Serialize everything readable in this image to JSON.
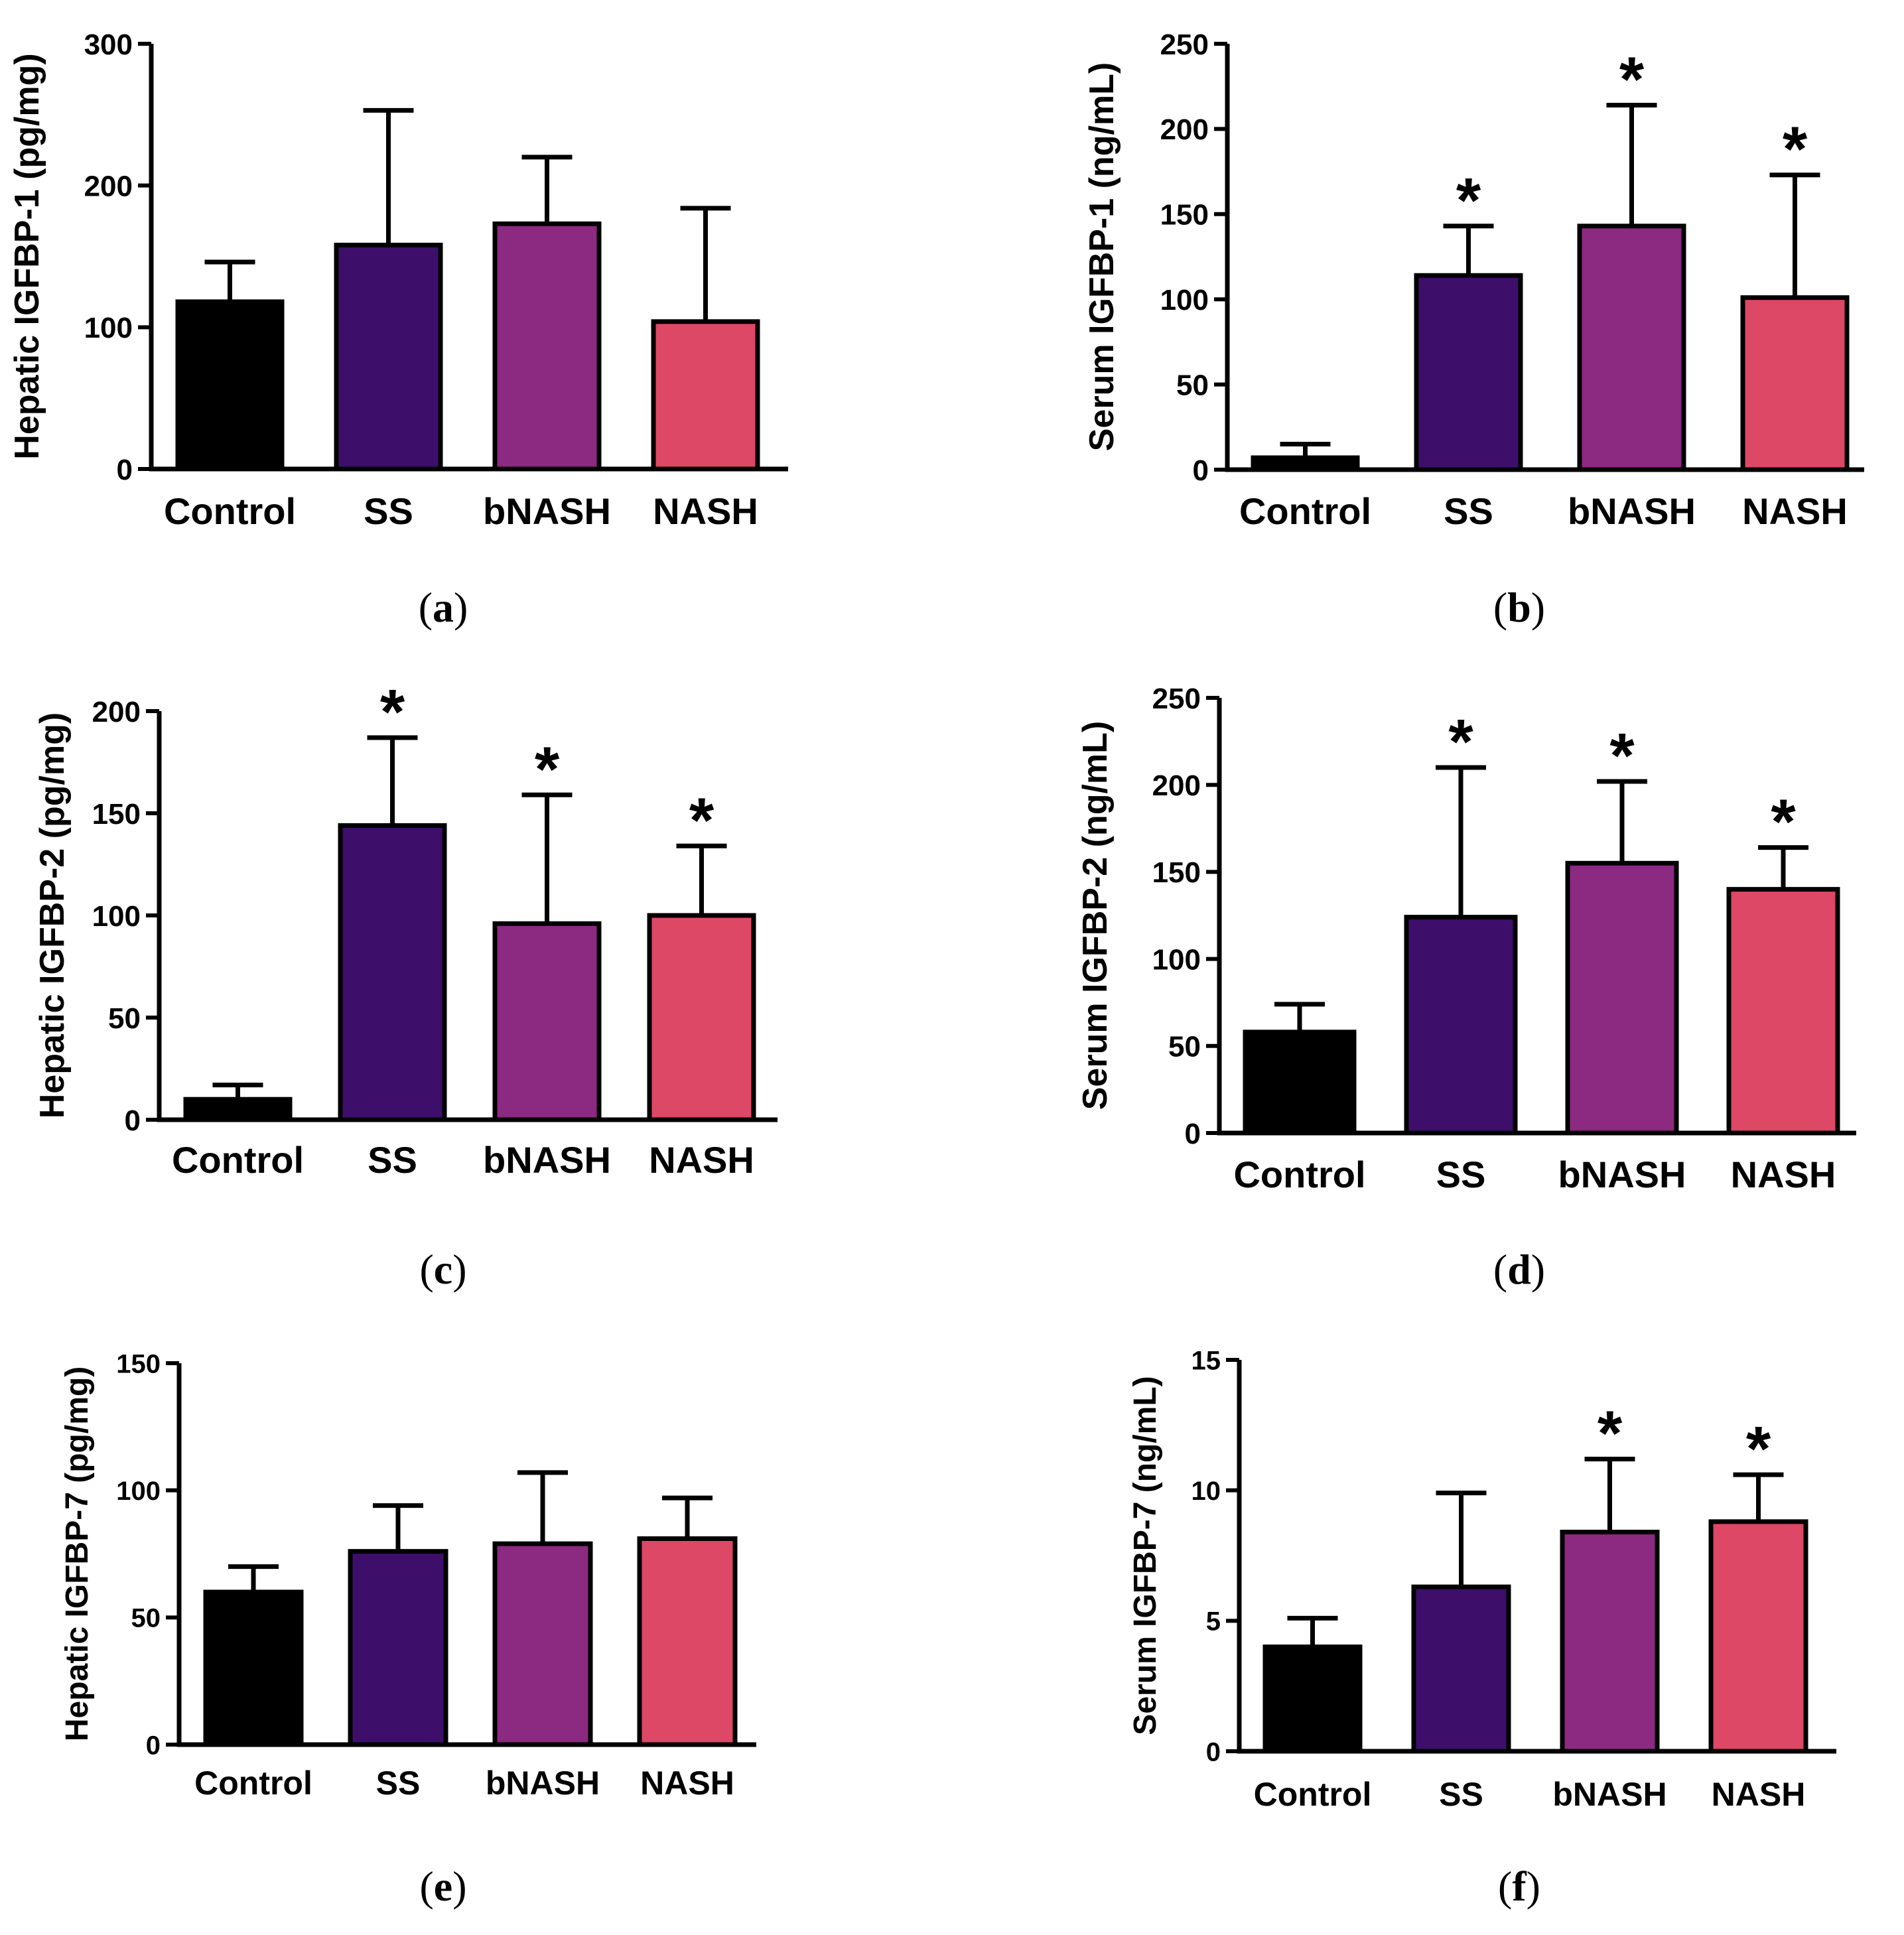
{
  "colors": {
    "Control": "#000000",
    "SS": "#3d0f6b",
    "bNASH": "#8b2a80",
    "NASH": "#dd4866",
    "axis": "#000000"
  },
  "chart_data": [
    {
      "type": "bar",
      "panel": "a",
      "ylabel": "Hepatic IGFBP-1 (pg/mg)",
      "categories": [
        "Control",
        "SS",
        "bNASH",
        "NASH"
      ],
      "values": [
        118,
        158,
        173,
        104
      ],
      "error": [
        28,
        95,
        47,
        80
      ],
      "significant": [
        false,
        false,
        false,
        false
      ],
      "ylim": [
        0,
        300
      ],
      "yticks": [
        "0",
        "100",
        "200",
        "300"
      ]
    },
    {
      "type": "bar",
      "panel": "b",
      "ylabel": "Serum IGFBP-1 (ng/mL)",
      "categories": [
        "Control",
        "SS",
        "bNASH",
        "NASH"
      ],
      "values": [
        7,
        114,
        143,
        101
      ],
      "error": [
        8,
        29,
        71,
        72
      ],
      "significant": [
        false,
        true,
        true,
        true
      ],
      "ylim": [
        0,
        250
      ],
      "yticks": [
        "0",
        "50",
        "100",
        "150",
        "200",
        "250"
      ]
    },
    {
      "type": "bar",
      "panel": "c",
      "ylabel": "Hepatic IGFBP-2 (pg/mg)",
      "categories": [
        "Control",
        "SS",
        "bNASH",
        "NASH"
      ],
      "values": [
        10,
        144,
        96,
        100
      ],
      "error": [
        7,
        43,
        63,
        34
      ],
      "significant": [
        false,
        true,
        true,
        true
      ],
      "ylim": [
        0,
        200
      ],
      "yticks": [
        "0",
        "50",
        "100",
        "150",
        "200"
      ]
    },
    {
      "type": "bar",
      "panel": "d",
      "ylabel": "Serum IGFBP-2 (ng/mL)",
      "categories": [
        "Control",
        "SS",
        "bNASH",
        "NASH"
      ],
      "values": [
        58,
        124,
        155,
        140
      ],
      "error": [
        16,
        86,
        47,
        24
      ],
      "significant": [
        false,
        true,
        true,
        true
      ],
      "ylim": [
        0,
        250
      ],
      "yticks": [
        "0",
        "50",
        "100",
        "150",
        "200",
        "250"
      ]
    },
    {
      "type": "bar",
      "panel": "e",
      "ylabel": "Hepatic IGFBP-7 (pg/mg)",
      "categories": [
        "Control",
        "SS",
        "bNASH",
        "NASH"
      ],
      "values": [
        60,
        76,
        79,
        81
      ],
      "error": [
        10,
        18,
        28,
        16
      ],
      "significant": [
        false,
        false,
        false,
        false
      ],
      "ylim": [
        0,
        150
      ],
      "yticks": [
        "0",
        "50",
        "100",
        "150"
      ]
    },
    {
      "type": "bar",
      "panel": "f",
      "ylabel": "Serum IGFBP-7 (ng/mL)",
      "categories": [
        "Control",
        "SS",
        "bNASH",
        "NASH"
      ],
      "values": [
        4.0,
        6.3,
        8.4,
        8.8
      ],
      "error": [
        1.1,
        3.6,
        2.8,
        1.8
      ],
      "significant": [
        false,
        false,
        true,
        true
      ],
      "ylim": [
        0,
        15
      ],
      "yticks": [
        "0",
        "5",
        "10",
        "15"
      ]
    }
  ],
  "significance_marker": "*"
}
